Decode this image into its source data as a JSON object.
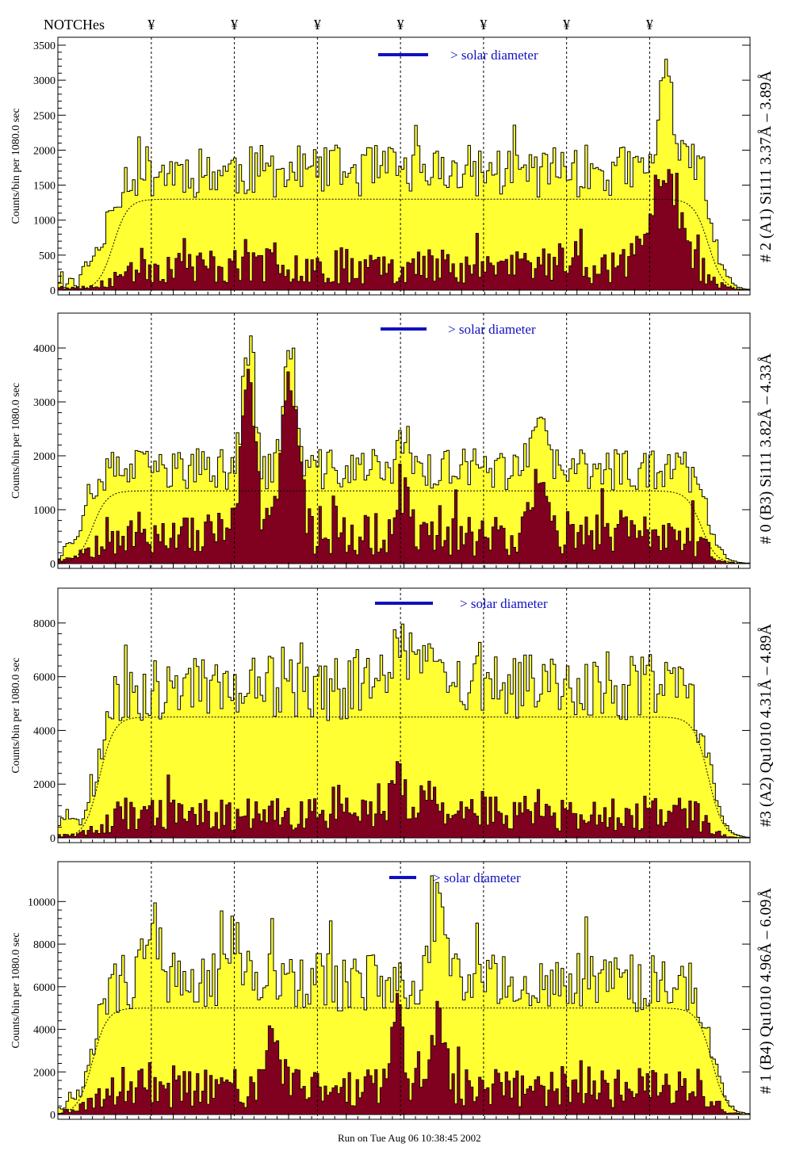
{
  "header": {
    "notches_label": "NOTCHes",
    "notch_symbol": "¥",
    "notch_x": [
      0.135,
      0.255,
      0.375,
      0.495,
      0.615,
      0.735,
      0.855
    ]
  },
  "footer": {
    "run_text": "Run on Tue Aug 06 10:38:45 2002"
  },
  "colors": {
    "total_fill": "#ffff33",
    "sub_fill": "#800020",
    "solar_bar": "#1010c0",
    "line": "#000000"
  },
  "chart_data": [
    {
      "type": "area",
      "title": "# 2 (A1) Si111  3.37Å – 3.89Å",
      "ylabel": "Counts/bin per   1080.0 sec",
      "yticks": [
        "0",
        "500",
        "1000",
        "1500",
        "2000",
        "2500",
        "3000",
        "3500"
      ],
      "ylim": [
        0,
        3500
      ],
      "annotation": "> solar diameter",
      "series": [
        {
          "name": "total",
          "seed": 11,
          "plateau": 1700,
          "edge_start": 0.07,
          "edge_end": 0.945,
          "peaks": [
            [
              0.88,
              1500,
              0.01
            ],
            [
              0.93,
              500,
              0.01
            ]
          ]
        },
        {
          "name": "subset",
          "seed": 23,
          "plateau": 350,
          "edge_start": 0.08,
          "edge_end": 0.945,
          "peaks": [
            [
              0.88,
              900,
              0.02
            ],
            [
              0.87,
              500,
              0.02
            ]
          ]
        },
        {
          "name": "smooth",
          "plateau": 1300,
          "edge_start": 0.08,
          "edge_end": 0.94
        }
      ]
    },
    {
      "type": "area",
      "title": "# 0 (B3) Si111  3.82Å – 4.33Å",
      "ylabel": "Counts/bin per   1080.0 sec",
      "yticks": [
        "0",
        "1000",
        "2000",
        "3000",
        "4000"
      ],
      "ylim": [
        0,
        4500
      ],
      "annotation": "> solar diameter",
      "series": [
        {
          "name": "total",
          "seed": 37,
          "plateau": 1750,
          "edge_start": 0.04,
          "edge_end": 0.94,
          "peaks": [
            [
              0.275,
              2300,
              0.008
            ],
            [
              0.335,
              2400,
              0.008
            ],
            [
              0.5,
              500,
              0.01
            ],
            [
              0.695,
              800,
              0.01
            ]
          ]
        },
        {
          "name": "subset",
          "seed": 53,
          "plateau": 550,
          "edge_start": 0.04,
          "edge_end": 0.94,
          "peaks": [
            [
              0.275,
              2600,
              0.01
            ],
            [
              0.335,
              2700,
              0.012
            ],
            [
              0.5,
              600,
              0.01
            ],
            [
              0.695,
              1000,
              0.01
            ]
          ]
        },
        {
          "name": "smooth",
          "plateau": 1350,
          "edge_start": 0.05,
          "edge_end": 0.93
        }
      ]
    },
    {
      "type": "area",
      "title": "#3 (A2) Qu1010  4.31Å – 4.89Å",
      "ylabel": "Counts/bin per   1080.0 sec",
      "yticks": [
        "0",
        "2000",
        "4000",
        "6000",
        "8000"
      ],
      "ylim": [
        0,
        9000
      ],
      "annotation": "> solar diameter",
      "series": [
        {
          "name": "total",
          "seed": 71,
          "plateau": 5600,
          "edge_start": 0.06,
          "edge_end": 0.94,
          "peaks": [
            [
              0.495,
              2200,
              0.012
            ],
            [
              0.53,
              1200,
              0.01
            ]
          ]
        },
        {
          "name": "subset",
          "seed": 89,
          "plateau": 900,
          "edge_start": 0.06,
          "edge_end": 0.94,
          "peaks": [
            [
              0.49,
              1800,
              0.008
            ],
            [
              0.535,
              1200,
              0.01
            ]
          ]
        },
        {
          "name": "smooth",
          "plateau": 4500,
          "edge_start": 0.06,
          "edge_end": 0.94
        }
      ]
    },
    {
      "type": "area",
      "title": "# 1 (B4) Qu1010 4.96Å – 6.09Å",
      "ylabel": "Counts/bin per   1080.0 sec",
      "yticks": [
        "0",
        "2000",
        "4000",
        "6000",
        "8000",
        "10000"
      ],
      "ylim": [
        0,
        11500
      ],
      "annotation": "> solar diameter",
      "series": [
        {
          "name": "total",
          "seed": 97,
          "plateau": 6200,
          "edge_start": 0.05,
          "edge_end": 0.945,
          "peaks": [
            [
              0.135,
              3000,
              0.01
            ],
            [
              0.255,
              2500,
              0.01
            ],
            [
              0.55,
              4000,
              0.008
            ]
          ]
        },
        {
          "name": "subset",
          "seed": 113,
          "plateau": 1300,
          "edge_start": 0.05,
          "edge_end": 0.945,
          "peaks": [
            [
              0.49,
              4000,
              0.008
            ],
            [
              0.55,
              3500,
              0.008
            ],
            [
              0.31,
              2500,
              0.01
            ]
          ]
        },
        {
          "name": "smooth",
          "plateau": 5000,
          "edge_start": 0.05,
          "edge_end": 0.945
        }
      ]
    }
  ]
}
